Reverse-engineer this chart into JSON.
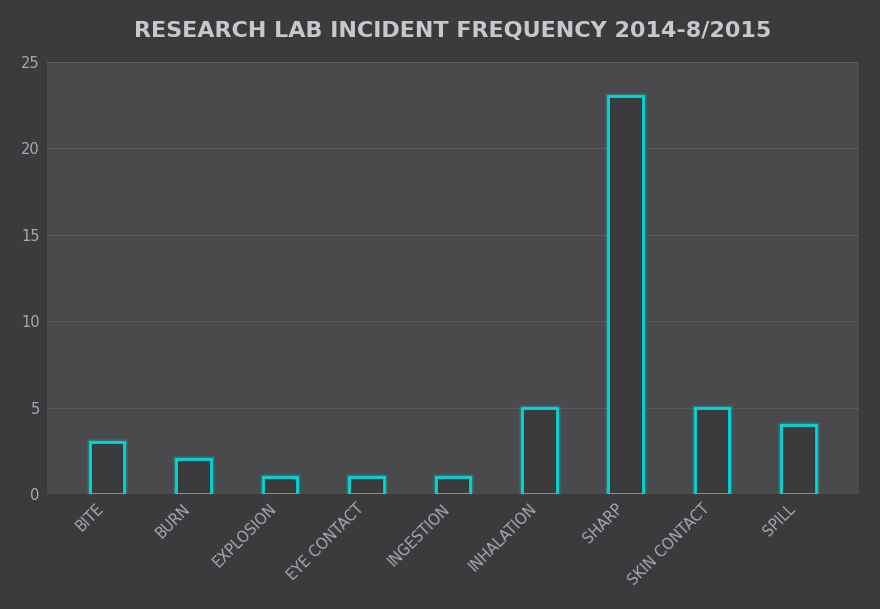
{
  "title": "RESEARCH LAB INCIDENT FREQUENCY 2014-8/2015",
  "categories": [
    "BITE",
    "BURN",
    "EXPLOSION",
    "EYE CONTACT",
    "INGESTION",
    "INHALATION",
    "SHARP",
    "SKIN CONTACT",
    "SPILL"
  ],
  "values": [
    3,
    2,
    1,
    1,
    1,
    5,
    23,
    5,
    4
  ],
  "ylim": [
    0,
    25
  ],
  "yticks": [
    0,
    5,
    10,
    15,
    20,
    25
  ],
  "figure_bg_color": "#3b3b3e",
  "plot_bg_color": "#4a4a4d",
  "bar_face_color": "#3b3b3e",
  "bar_edge_color": "#00d8d8",
  "title_color": "#c8c8cc",
  "tick_color": "#a8a8b0",
  "grid_color": "#5a5a5e",
  "title_fontsize": 16,
  "tick_fontsize": 10.5,
  "bar_linewidth": 2.0,
  "bar_width": 0.4
}
